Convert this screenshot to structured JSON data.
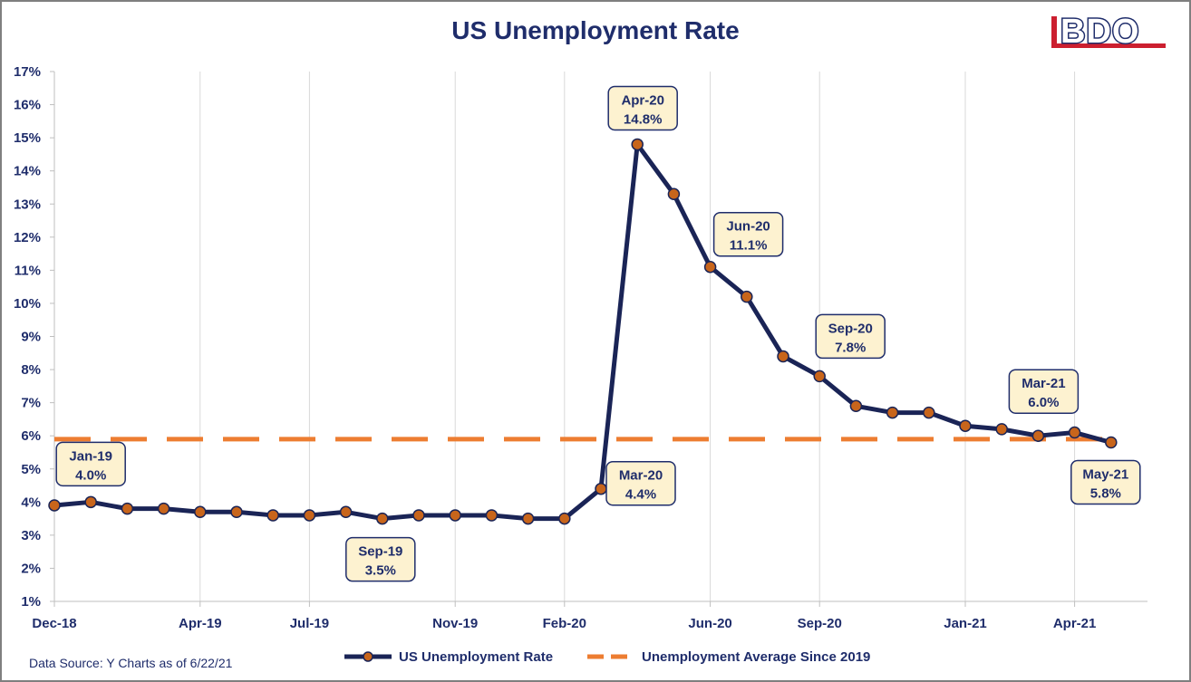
{
  "chart_data": {
    "type": "line",
    "title": "US Unemployment Rate",
    "source": "Data Source: Y Charts as of 6/22/21",
    "x_tick_labels": [
      "Dec-18",
      "Apr-19",
      "Jul-19",
      "Nov-19",
      "Feb-20",
      "Jun-20",
      "Sep-20",
      "Jan-21",
      "Apr-21"
    ],
    "y_tick_labels": [
      "1%",
      "2%",
      "3%",
      "4%",
      "5%",
      "6%",
      "7%",
      "8%",
      "9%",
      "10%",
      "11%",
      "12%",
      "13%",
      "14%",
      "15%",
      "16%",
      "17%"
    ],
    "ylim": [
      1,
      17
    ],
    "grid": "vertical",
    "legend_position": "bottom",
    "series": [
      {
        "name": "US Unemployment Rate",
        "color": "#1a2456",
        "marker_color": "#c8651b",
        "x": [
          "Dec-18",
          "Jan-19",
          "Feb-19",
          "Mar-19",
          "Apr-19",
          "May-19",
          "Jun-19",
          "Jul-19",
          "Aug-19",
          "Sep-19",
          "Oct-19",
          "Nov-19",
          "Dec-19",
          "Jan-20",
          "Feb-20",
          "Mar-20",
          "Apr-20",
          "May-20",
          "Jun-20",
          "Jul-20",
          "Aug-20",
          "Sep-20",
          "Oct-20",
          "Nov-20",
          "Dec-20",
          "Jan-21",
          "Feb-21",
          "Mar-21",
          "Apr-21",
          "May-21"
        ],
        "values": [
          3.9,
          4.0,
          3.8,
          3.8,
          3.7,
          3.7,
          3.6,
          3.6,
          3.7,
          3.5,
          3.6,
          3.6,
          3.6,
          3.5,
          3.5,
          4.4,
          14.8,
          13.3,
          11.1,
          10.2,
          8.4,
          7.8,
          6.9,
          6.7,
          6.7,
          6.3,
          6.2,
          6.0,
          6.1,
          5.8
        ]
      },
      {
        "name": "Unemployment Average Since 2019",
        "color": "#ed7d31",
        "value": 5.9
      }
    ],
    "annotations": [
      {
        "label": "Jan-19",
        "value": "4.0%"
      },
      {
        "label": "Sep-19",
        "value": "3.5%"
      },
      {
        "label": "Mar-20",
        "value": "4.4%"
      },
      {
        "label": "Apr-20",
        "value": "14.8%"
      },
      {
        "label": "Jun-20",
        "value": "11.1%"
      },
      {
        "label": "Sep-20",
        "value": "7.8%"
      },
      {
        "label": "Mar-21",
        "value": "6.0%"
      },
      {
        "label": "May-21",
        "value": "5.8%"
      }
    ]
  },
  "logo": {
    "text": "BDO",
    "color": "#1f2d6b",
    "accent": "#cc1f2f"
  }
}
